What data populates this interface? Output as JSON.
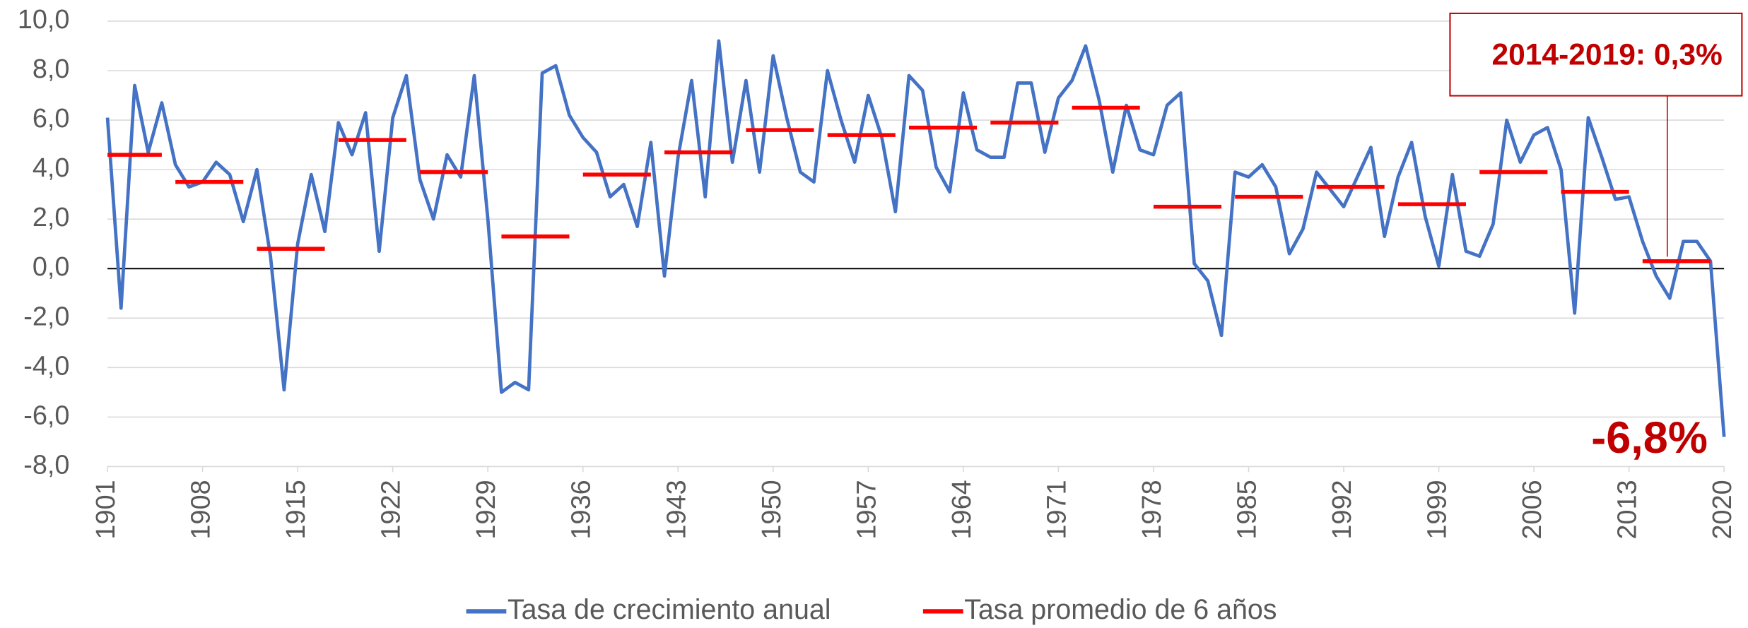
{
  "chart_data": {
    "type": "line",
    "x": [
      1901,
      1902,
      1903,
      1904,
      1905,
      1906,
      1907,
      1908,
      1909,
      1910,
      1911,
      1912,
      1913,
      1914,
      1915,
      1916,
      1917,
      1918,
      1919,
      1920,
      1921,
      1922,
      1923,
      1924,
      1925,
      1926,
      1927,
      1928,
      1929,
      1930,
      1931,
      1932,
      1933,
      1934,
      1935,
      1936,
      1937,
      1938,
      1939,
      1940,
      1941,
      1942,
      1943,
      1944,
      1945,
      1946,
      1947,
      1948,
      1949,
      1950,
      1951,
      1952,
      1953,
      1954,
      1955,
      1956,
      1957,
      1958,
      1959,
      1960,
      1961,
      1962,
      1963,
      1964,
      1965,
      1966,
      1967,
      1968,
      1969,
      1970,
      1971,
      1972,
      1973,
      1974,
      1975,
      1976,
      1977,
      1978,
      1979,
      1980,
      1981,
      1982,
      1983,
      1984,
      1985,
      1986,
      1987,
      1988,
      1989,
      1990,
      1991,
      1992,
      1993,
      1994,
      1995,
      1996,
      1997,
      1998,
      1999,
      2000,
      2001,
      2002,
      2003,
      2004,
      2005,
      2006,
      2007,
      2008,
      2009,
      2010,
      2011,
      2012,
      2013,
      2014,
      2015,
      2016,
      2017,
      2018,
      2019,
      2020
    ],
    "series": [
      {
        "name": "Tasa de crecimiento anual",
        "color": "#4472c4",
        "values": [
          6.1,
          -1.6,
          7.4,
          4.7,
          6.7,
          4.2,
          3.3,
          3.5,
          4.3,
          3.8,
          1.9,
          4.0,
          0.5,
          -4.9,
          1.0,
          3.8,
          1.5,
          5.9,
          4.6,
          6.3,
          0.7,
          6.1,
          7.8,
          3.6,
          2.0,
          4.6,
          3.7,
          7.8,
          2.0,
          -5.0,
          -4.6,
          -4.9,
          7.9,
          8.2,
          6.2,
          5.3,
          4.7,
          2.9,
          3.4,
          1.7,
          5.1,
          -0.3,
          4.5,
          7.6,
          2.9,
          9.2,
          4.3,
          7.6,
          3.9,
          8.6,
          6.1,
          3.9,
          3.5,
          8.0,
          6.0,
          4.3,
          7.0,
          5.3,
          2.3,
          7.8,
          7.2,
          4.1,
          3.1,
          7.1,
          4.8,
          4.5,
          4.5,
          7.5,
          7.5,
          4.7,
          6.9,
          7.6,
          9.0,
          6.8,
          3.9,
          6.6,
          4.8,
          4.6,
          6.6,
          7.1,
          0.2,
          -0.5,
          -2.7,
          3.9,
          3.7,
          4.2,
          3.3,
          0.6,
          1.6,
          3.9,
          3.2,
          2.5,
          3.7,
          4.9,
          1.3,
          3.7,
          5.1,
          2.1,
          0.1,
          3.8,
          0.7,
          0.5,
          1.8,
          6.0,
          4.3,
          5.4,
          5.7,
          4.0,
          -1.8,
          6.1,
          4.5,
          2.8,
          2.9,
          1.1,
          -0.3,
          -1.2,
          1.1,
          1.1,
          0.3,
          -6.8
        ]
      },
      {
        "name": "Tasa promedio de 6 años",
        "color": "#ff0000",
        "values": [
          4.6,
          4.6,
          4.6,
          4.6,
          4.6,
          3.5,
          3.5,
          3.5,
          3.5,
          3.5,
          3.5,
          0.8,
          0.8,
          0.8,
          0.8,
          0.8,
          0.8,
          5.2,
          5.2,
          5.2,
          5.2,
          5.2,
          5.2,
          3.9,
          3.9,
          3.9,
          3.9,
          3.9,
          3.9,
          1.3,
          1.3,
          1.3,
          1.3,
          1.3,
          1.3,
          3.8,
          3.8,
          3.8,
          3.8,
          3.8,
          3.8,
          4.7,
          4.7,
          4.7,
          4.7,
          4.7,
          4.7,
          5.6,
          5.6,
          5.6,
          5.6,
          5.6,
          5.6,
          5.4,
          5.4,
          5.4,
          5.4,
          5.4,
          5.4,
          5.7,
          5.7,
          5.7,
          5.7,
          5.7,
          5.7,
          5.9,
          5.9,
          5.9,
          5.9,
          5.9,
          5.9,
          6.5,
          6.5,
          6.5,
          6.5,
          6.5,
          6.5,
          2.5,
          2.5,
          2.5,
          2.5,
          2.5,
          2.5,
          2.9,
          2.9,
          2.9,
          2.9,
          2.9,
          2.9,
          3.3,
          3.3,
          3.3,
          3.3,
          3.3,
          3.3,
          2.6,
          2.6,
          2.6,
          2.6,
          2.6,
          2.6,
          3.9,
          3.9,
          3.9,
          3.9,
          3.9,
          3.9,
          3.1,
          3.1,
          3.1,
          3.1,
          3.1,
          3.1,
          0.3,
          0.3,
          0.3,
          0.3,
          0.3,
          0.3,
          null
        ]
      }
    ],
    "xlim": [
      1901,
      2020
    ],
    "xticks": [
      1901,
      1908,
      1915,
      1922,
      1929,
      1936,
      1943,
      1950,
      1957,
      1964,
      1971,
      1978,
      1985,
      1992,
      1999,
      2006,
      2013,
      2020
    ],
    "ylim": [
      -8,
      10
    ],
    "yticks": [
      {
        "value": -8,
        "label": "-8,0"
      },
      {
        "value": -6,
        "label": "-6,0"
      },
      {
        "value": -4,
        "label": "-4,0"
      },
      {
        "value": -2,
        "label": "-2,0"
      },
      {
        "value": 0,
        "label": "0,0"
      },
      {
        "value": 2,
        "label": "2,0"
      },
      {
        "value": 4,
        "label": "4,0"
      },
      {
        "value": 6,
        "label": "6,0"
      },
      {
        "value": 8,
        "label": "8,0"
      },
      {
        "value": 10,
        "label": "10,0"
      }
    ],
    "grid": true,
    "legend": "bottom",
    "annotations": [
      {
        "text": "2014-2019: 0,3%"
      },
      {
        "text": "-6,8%"
      }
    ]
  }
}
